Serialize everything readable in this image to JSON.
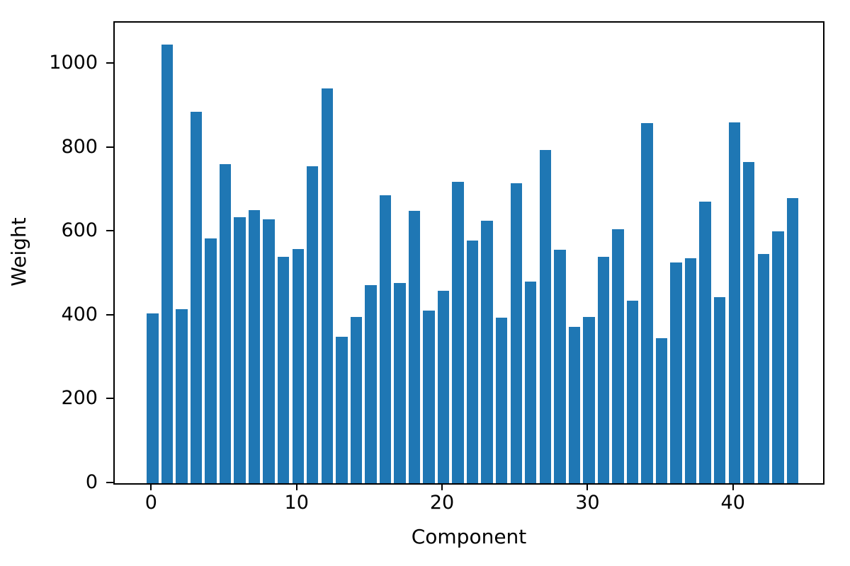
{
  "figure": {
    "background": "#ffffff",
    "spine_color": "#000000",
    "text_color": "#000000"
  },
  "chart_data": {
    "type": "bar",
    "title": "",
    "xlabel": "Component",
    "ylabel": "Weight",
    "bar_color": "#1f77b4",
    "categories": [
      0,
      1,
      2,
      3,
      4,
      5,
      6,
      7,
      8,
      9,
      10,
      11,
      12,
      13,
      14,
      15,
      16,
      17,
      18,
      19,
      20,
      21,
      22,
      23,
      24,
      25,
      26,
      27,
      28,
      29,
      30,
      31,
      32,
      33,
      34,
      35,
      36,
      37,
      38,
      39,
      40,
      41,
      42,
      43,
      44
    ],
    "values": [
      404,
      1046,
      415,
      886,
      583,
      761,
      635,
      651,
      629,
      540,
      559,
      756,
      941,
      350,
      397,
      472,
      686,
      477,
      650,
      411,
      458,
      718,
      579,
      625,
      394,
      716,
      480,
      794,
      556,
      373,
      397,
      539,
      605,
      436,
      858,
      346,
      526,
      537,
      671,
      444,
      861,
      766,
      547,
      601,
      680
    ],
    "x_ticks": [
      0,
      10,
      20,
      30,
      40
    ],
    "y_ticks": [
      0,
      200,
      400,
      600,
      800,
      1000
    ],
    "xlim": [
      -2.6,
      46.1
    ],
    "ylim": [
      0,
      1098
    ],
    "bar_width_data_units": 0.8,
    "grid": false,
    "legend_position": "none"
  }
}
